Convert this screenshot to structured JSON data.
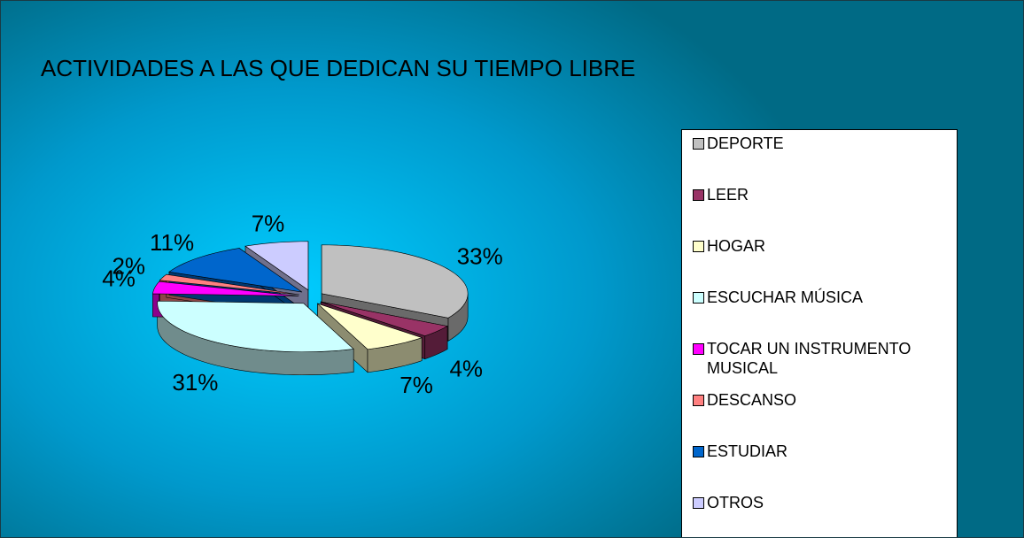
{
  "chart_data": {
    "type": "pie3d",
    "title": "ACTIVIDADES A LAS QUE DEDICAN SU TIEMPO LIBRE",
    "categories": [
      "DEPORTE",
      "LEER",
      "HOGAR",
      "ESCUCHAR MÚSICA",
      "TOCAR UN INSTRUMENTO MUSICAL",
      "DESCANSO",
      "ESTUDIAR",
      "OTROS"
    ],
    "values": [
      33,
      4,
      7,
      31,
      4,
      2,
      11,
      7
    ],
    "value_labels": [
      "33%",
      "4%",
      "7%",
      "31%",
      "4%",
      "2%",
      "11%",
      "7%"
    ],
    "colors": [
      "#c0c0c0",
      "#993366",
      "#ffffcc",
      "#ccffff",
      "#ff00ff",
      "#ff8080",
      "#0066cc",
      "#ccccff"
    ],
    "legend": "right"
  }
}
